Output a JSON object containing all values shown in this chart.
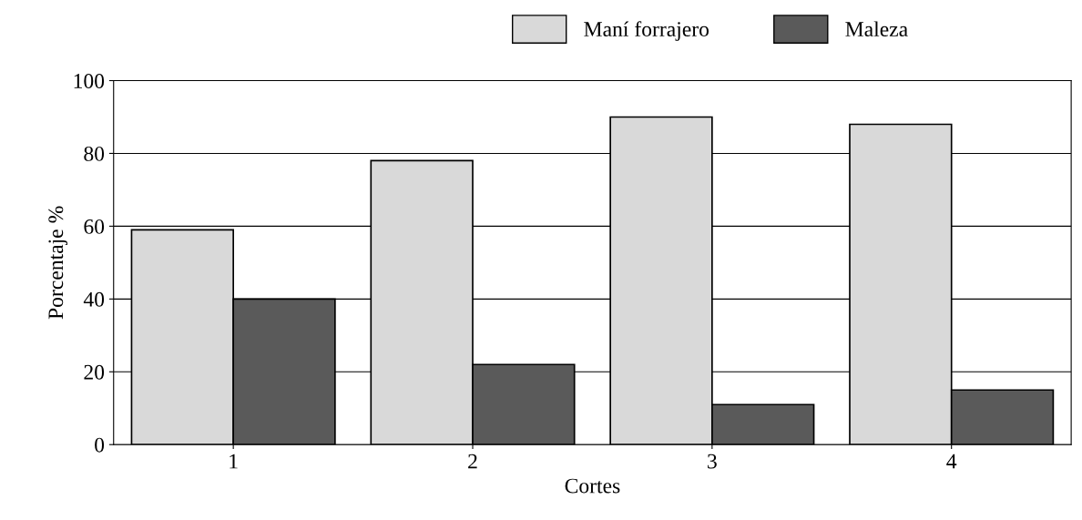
{
  "chart_data": {
    "type": "bar",
    "xlabel": "Cortes",
    "ylabel": "Porcentaje %",
    "categories": [
      "1",
      "2",
      "3",
      "4"
    ],
    "series": [
      {
        "name": "Maní forrajero",
        "color": "#d9d9d9",
        "values": [
          59,
          78,
          90,
          88
        ]
      },
      {
        "name": "Maleza",
        "color": "#5a5a5a",
        "values": [
          40,
          22,
          11,
          15
        ]
      }
    ],
    "ylim": [
      0,
      100
    ],
    "yticks": [
      0,
      20,
      40,
      60,
      80,
      100
    ],
    "grid": "y",
    "legend": "top right"
  }
}
